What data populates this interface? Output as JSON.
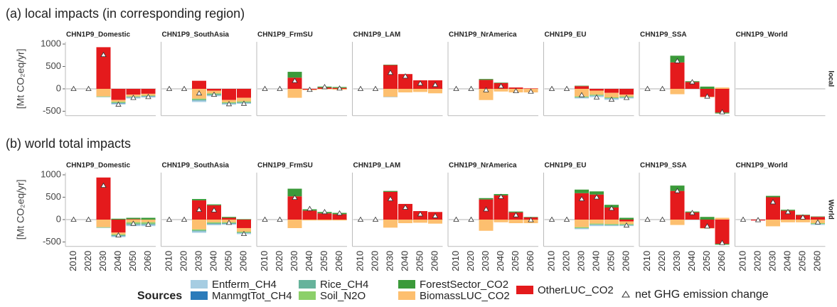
{
  "chart_data": {
    "type": "bar",
    "rows": [
      {
        "title": "(a) local impacts (in corresponding region)",
        "strip": "local"
      },
      {
        "title": "(b) world total impacts",
        "strip": "World"
      }
    ],
    "panels": [
      "CHN1P9_Domestic",
      "CHN1P9_SouthAsia",
      "CHN1P9_FrmSU",
      "CHN1P9_LAM",
      "CHN1P9_NrAmerica",
      "CHN1P9_EU",
      "CHN1P9_SSA",
      "CHN1P9_World"
    ],
    "ylabel": "[Mt CO₂eq/yr]",
    "categories": [
      "2010",
      "2020",
      "2030",
      "2040",
      "2050",
      "2060"
    ],
    "ylim": [
      -600,
      1050
    ],
    "yticks": [
      -500,
      0,
      500,
      1000
    ],
    "legend_title": "Sources",
    "series": [
      {
        "name": "OtherLUC_CO2",
        "color": "#e41a1c",
        "values": [
          [
            [
              0,
              0,
              930,
              -250,
              -130,
              -110
            ],
            [
              0,
              0,
              180,
              -40,
              -250,
              -200
            ],
            [
              0,
              0,
              250,
              -20,
              30,
              20
            ],
            [
              0,
              0,
              530,
              330,
              190,
              190
            ],
            [
              0,
              0,
              200,
              130,
              30,
              10
            ],
            [
              0,
              0,
              60,
              -40,
              -90,
              -130
            ],
            [
              0,
              0,
              590,
              150,
              -180,
              -530
            ],
            [
              null,
              null,
              null,
              null,
              null,
              null
            ]
          ],
          [
            [
              0,
              0,
              940,
              -290,
              10,
              0
            ],
            [
              0,
              0,
              430,
              320,
              40,
              -190
            ],
            [
              0,
              0,
              520,
              200,
              140,
              120
            ],
            [
              0,
              0,
              620,
              350,
              190,
              170
            ],
            [
              0,
              0,
              450,
              540,
              160,
              50
            ],
            [
              0,
              0,
              590,
              560,
              270,
              -40
            ],
            [
              0,
              0,
              640,
              160,
              -190,
              -540
            ],
            [
              0,
              -20,
              500,
              200,
              100,
              60
            ]
          ]
        ]
      },
      {
        "name": "ForestSector_CO2",
        "color": "#3b9a3a",
        "values": [
          [
            [
              0,
              0,
              0,
              0,
              0,
              0
            ],
            [
              0,
              0,
              0,
              0,
              0,
              0
            ],
            [
              0,
              0,
              130,
              0,
              20,
              20
            ],
            [
              0,
              0,
              10,
              0,
              0,
              0
            ],
            [
              0,
              0,
              20,
              10,
              0,
              0
            ],
            [
              0,
              0,
              10,
              0,
              0,
              0
            ],
            [
              0,
              0,
              150,
              20,
              50,
              -20
            ],
            [
              null,
              null,
              null,
              null,
              null,
              null
            ]
          ],
          [
            [
              0,
              0,
              0,
              20,
              30,
              40
            ],
            [
              0,
              0,
              30,
              20,
              20,
              10
            ],
            [
              0,
              0,
              170,
              30,
              30,
              30
            ],
            [
              0,
              0,
              20,
              0,
              0,
              0
            ],
            [
              0,
              0,
              30,
              30,
              20,
              10
            ],
            [
              0,
              0,
              80,
              70,
              60,
              40
            ],
            [
              0,
              0,
              120,
              20,
              60,
              -20
            ],
            [
              0,
              0,
              30,
              20,
              10,
              10
            ]
          ]
        ]
      },
      {
        "name": "BiomassLUC_CO2",
        "color": "#fdbf6f",
        "values": [
          [
            [
              0,
              0,
              -170,
              -40,
              -40,
              -40
            ],
            [
              0,
              0,
              -220,
              -60,
              -50,
              -80
            ],
            [
              0,
              0,
              -200,
              -10,
              -10,
              -20
            ],
            [
              0,
              0,
              -180,
              -80,
              -70,
              -100
            ],
            [
              0,
              0,
              -250,
              -60,
              -80,
              -80
            ],
            [
              0,
              0,
              -170,
              -90,
              -100,
              -40
            ],
            [
              0,
              0,
              -120,
              0,
              -10,
              30
            ],
            [
              null,
              null,
              null,
              null,
              null,
              null
            ]
          ],
          [
            [
              0,
              0,
              -170,
              -40,
              -60,
              -60
            ],
            [
              0,
              0,
              -220,
              -60,
              -60,
              -80
            ],
            [
              0,
              0,
              -190,
              -20,
              -20,
              -20
            ],
            [
              0,
              0,
              -180,
              -80,
              -70,
              -90
            ],
            [
              0,
              0,
              -250,
              -60,
              -80,
              -80
            ],
            [
              0,
              0,
              -170,
              -90,
              -100,
              -60
            ],
            [
              0,
              0,
              -120,
              0,
              -10,
              40
            ],
            [
              0,
              0,
              -150,
              -60,
              -60,
              -80
            ]
          ]
        ]
      },
      {
        "name": "Soil_N2O",
        "color": "#8cd06a",
        "values": [
          [
            [
              0,
              0,
              -10,
              -20,
              -10,
              -10
            ],
            [
              0,
              0,
              -20,
              -20,
              -20,
              -20
            ],
            [
              0,
              0,
              0,
              0,
              0,
              0
            ],
            [
              0,
              0,
              0,
              0,
              0,
              0
            ],
            [
              0,
              0,
              0,
              0,
              0,
              0
            ],
            [
              0,
              0,
              -20,
              -20,
              -20,
              -20
            ],
            [
              0,
              0,
              0,
              0,
              0,
              0
            ],
            [
              null,
              null,
              null,
              null,
              null,
              null
            ]
          ],
          [
            [
              0,
              0,
              -10,
              -20,
              -30,
              -30
            ],
            [
              0,
              0,
              -20,
              -20,
              -20,
              -20
            ],
            [
              0,
              0,
              0,
              0,
              0,
              0
            ],
            [
              0,
              0,
              0,
              0,
              0,
              0
            ],
            [
              0,
              0,
              0,
              0,
              0,
              0
            ],
            [
              0,
              0,
              -20,
              -20,
              -20,
              -20
            ],
            [
              0,
              0,
              0,
              0,
              0,
              0
            ],
            [
              0,
              0,
              0,
              0,
              0,
              -20
            ]
          ]
        ]
      },
      {
        "name": "Rice_CH4",
        "color": "#66b39b",
        "values": [
          [
            [
              0,
              0,
              0,
              -10,
              -10,
              -10
            ],
            [
              0,
              0,
              -20,
              -20,
              -10,
              -10
            ],
            [
              0,
              0,
              0,
              0,
              0,
              0
            ],
            [
              0,
              0,
              0,
              0,
              0,
              0
            ],
            [
              0,
              0,
              0,
              0,
              0,
              0
            ],
            [
              0,
              0,
              0,
              0,
              0,
              0
            ],
            [
              0,
              0,
              0,
              0,
              0,
              0
            ],
            [
              null,
              null,
              null,
              null,
              null,
              null
            ]
          ],
          [
            [
              0,
              0,
              0,
              -10,
              -20,
              -20
            ],
            [
              0,
              0,
              -20,
              -20,
              -10,
              -10
            ],
            [
              0,
              0,
              0,
              0,
              0,
              0
            ],
            [
              0,
              0,
              0,
              0,
              0,
              0
            ],
            [
              0,
              0,
              0,
              0,
              0,
              0
            ],
            [
              0,
              0,
              0,
              0,
              0,
              0
            ],
            [
              0,
              0,
              0,
              0,
              0,
              0
            ],
            [
              0,
              0,
              0,
              0,
              0,
              0
            ]
          ]
        ]
      },
      {
        "name": "ManmgtTot_CH4",
        "color": "#2b7bba",
        "values": [
          [
            [
              0,
              0,
              0,
              -10,
              -5,
              -5
            ],
            [
              0,
              0,
              -5,
              -5,
              -5,
              -5
            ],
            [
              0,
              0,
              0,
              0,
              0,
              0
            ],
            [
              0,
              0,
              0,
              0,
              0,
              0
            ],
            [
              0,
              0,
              0,
              0,
              0,
              0
            ],
            [
              0,
              0,
              -5,
              -5,
              -5,
              -5
            ],
            [
              0,
              0,
              0,
              0,
              0,
              0
            ],
            [
              null,
              null,
              null,
              null,
              null,
              null
            ]
          ],
          [
            [
              0,
              0,
              0,
              -10,
              -5,
              -5
            ],
            [
              0,
              0,
              -5,
              -5,
              -5,
              -5
            ],
            [
              0,
              0,
              0,
              0,
              0,
              0
            ],
            [
              0,
              0,
              0,
              0,
              0,
              0
            ],
            [
              0,
              0,
              0,
              0,
              0,
              0
            ],
            [
              0,
              0,
              -5,
              -5,
              -5,
              -5
            ],
            [
              0,
              0,
              0,
              0,
              0,
              0
            ],
            [
              0,
              0,
              0,
              0,
              0,
              0
            ]
          ]
        ]
      },
      {
        "name": "Entferm_CH4",
        "color": "#a6cde2",
        "values": [
          [
            [
              0,
              0,
              -10,
              -20,
              -20,
              -20
            ],
            [
              0,
              0,
              -30,
              -20,
              -20,
              -20
            ],
            [
              0,
              0,
              0,
              0,
              0,
              0
            ],
            [
              0,
              0,
              -10,
              0,
              0,
              0
            ],
            [
              0,
              0,
              0,
              0,
              0,
              0
            ],
            [
              0,
              0,
              -20,
              -30,
              -30,
              -20
            ],
            [
              0,
              0,
              0,
              0,
              0,
              0
            ],
            [
              null,
              null,
              null,
              null,
              null,
              null
            ]
          ],
          [
            [
              0,
              0,
              -10,
              -20,
              -30,
              -30
            ],
            [
              0,
              0,
              -30,
              -20,
              -20,
              -20
            ],
            [
              0,
              0,
              0,
              0,
              0,
              0
            ],
            [
              0,
              0,
              0,
              0,
              0,
              0
            ],
            [
              0,
              0,
              0,
              0,
              0,
              0
            ],
            [
              0,
              0,
              -20,
              -30,
              -20,
              -20
            ],
            [
              0,
              0,
              0,
              0,
              0,
              0
            ],
            [
              0,
              0,
              0,
              0,
              0,
              -20
            ]
          ]
        ]
      }
    ],
    "net": {
      "name": "net GHG emission change",
      "values": [
        [
          [
            0,
            0,
            760,
            -350,
            -200,
            -180
          ],
          [
            0,
            0,
            -100,
            -130,
            -340,
            -330
          ],
          [
            0,
            0,
            180,
            -20,
            40,
            10
          ],
          [
            0,
            0,
            360,
            280,
            120,
            90
          ],
          [
            0,
            0,
            -30,
            60,
            -50,
            -60
          ],
          [
            0,
            0,
            -140,
            -190,
            -240,
            -200
          ],
          [
            0,
            0,
            620,
            150,
            -170,
            -520
          ],
          [
            null,
            null,
            null,
            null,
            null,
            null
          ]
        ],
        [
          [
            0,
            0,
            760,
            -350,
            -90,
            -110
          ],
          [
            0,
            0,
            220,
            210,
            -70,
            -320
          ],
          [
            0,
            0,
            490,
            240,
            170,
            140
          ],
          [
            0,
            0,
            460,
            270,
            120,
            80
          ],
          [
            0,
            0,
            230,
            510,
            100,
            -10
          ],
          [
            0,
            0,
            460,
            500,
            250,
            -130
          ],
          [
            0,
            0,
            640,
            150,
            -150,
            -520
          ],
          [
            0,
            -10,
            390,
            170,
            50,
            -60
          ]
        ]
      ]
    }
  }
}
